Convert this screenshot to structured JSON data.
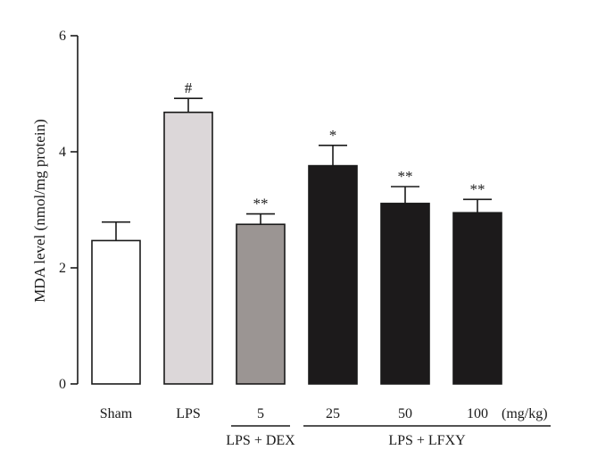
{
  "chart_data": {
    "type": "bar",
    "ylabel": "MDA level (nmol/mg protein)",
    "xlabel": "",
    "ylim": [
      0,
      6
    ],
    "yticks": [
      0,
      2,
      4,
      6
    ],
    "grid": false,
    "categories": [
      "Sham",
      "LPS",
      "5",
      "25",
      "50",
      "100"
    ],
    "unit_label": "(mg/kg)",
    "values": [
      2.47,
      4.68,
      2.75,
      3.76,
      3.11,
      2.95
    ],
    "errors": [
      0.32,
      0.24,
      0.18,
      0.35,
      0.29,
      0.23
    ],
    "significance": [
      "",
      "#",
      "**",
      "*",
      "**",
      "**"
    ],
    "fill_colors": [
      "#ffffff",
      "#dcd7d9",
      "#9b9593",
      "#1c1a1b",
      "#1c1a1b",
      "#1c1a1b"
    ],
    "groups": [
      {
        "label": "LPS + DEX",
        "from": 2,
        "to": 2
      },
      {
        "label": "LPS + LFXY",
        "from": 3,
        "to": 5
      }
    ]
  }
}
